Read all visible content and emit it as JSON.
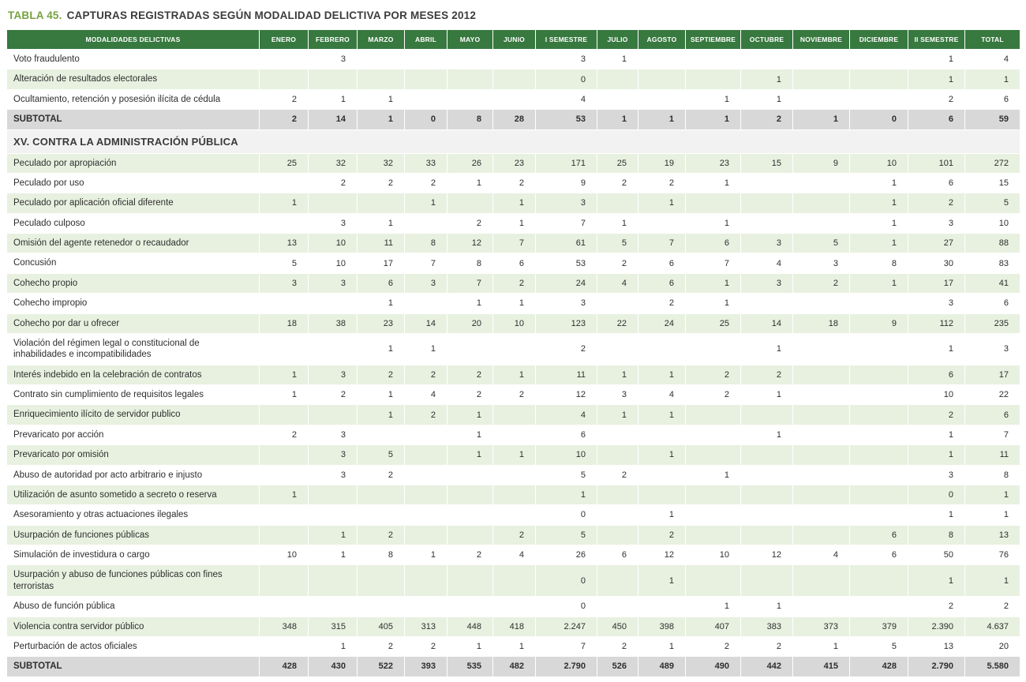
{
  "title": {
    "label": "TABLA 45.",
    "text": "CAPTURAS REGISTRADAS SEGÚN MODALIDAD DELICTIVA POR MESES 2012"
  },
  "colors": {
    "header_green": "#37793f",
    "row_alt_green": "#e8f1e0",
    "subtotal_gray": "#d8d8d8",
    "section_gray": "#f2f2f2",
    "title_green": "#76a240"
  },
  "table": {
    "columns": [
      "MODALIDADES DELICTIVAS",
      "ENERO",
      "FEBRERO",
      "MARZO",
      "ABRIL",
      "MAYO",
      "JUNIO",
      "I SEMESTRE",
      "JULIO",
      "AGOSTO",
      "SEPTIEMBRE",
      "OCTUBRE",
      "NOVIEMBRE",
      "DICIEMBRE",
      "II SEMESTRE",
      "TOTAL"
    ],
    "rows": [
      {
        "type": "data",
        "label": "Voto fraudulento",
        "values": [
          "",
          "3",
          "",
          "",
          "",
          "",
          "3",
          "1",
          "",
          "",
          "",
          "",
          "",
          "1",
          "4"
        ]
      },
      {
        "type": "data",
        "label": "Alteración de resultados electorales",
        "values": [
          "",
          "",
          "",
          "",
          "",
          "",
          "0",
          "",
          "",
          "",
          "1",
          "",
          "",
          "1",
          "1"
        ]
      },
      {
        "type": "data",
        "label": "Ocultamiento, retención y posesión ilícita de cédula",
        "values": [
          "2",
          "1",
          "1",
          "",
          "",
          "",
          "4",
          "",
          "",
          "1",
          "1",
          "",
          "",
          "2",
          "6"
        ]
      },
      {
        "type": "subtotal",
        "label": "SUBTOTAL",
        "values": [
          "2",
          "14",
          "1",
          "0",
          "8",
          "28",
          "53",
          "1",
          "1",
          "1",
          "2",
          "1",
          "0",
          "6",
          "59"
        ]
      },
      {
        "type": "section",
        "label": "XV. CONTRA LA ADMINISTRACIÓN PÚBLICA"
      },
      {
        "type": "data",
        "label": "Peculado por apropiación",
        "values": [
          "25",
          "32",
          "32",
          "33",
          "26",
          "23",
          "171",
          "25",
          "19",
          "23",
          "15",
          "9",
          "10",
          "101",
          "272"
        ]
      },
      {
        "type": "data",
        "label": "Peculado por uso",
        "values": [
          "",
          "2",
          "2",
          "2",
          "1",
          "2",
          "9",
          "2",
          "2",
          "1",
          "",
          "",
          "1",
          "6",
          "15"
        ]
      },
      {
        "type": "data",
        "label": "Peculado por aplicación oficial diferente",
        "values": [
          "1",
          "",
          "",
          "1",
          "",
          "1",
          "3",
          "",
          "1",
          "",
          "",
          "",
          "1",
          "2",
          "5"
        ]
      },
      {
        "type": "data",
        "label": "Peculado culposo",
        "values": [
          "",
          "3",
          "1",
          "",
          "2",
          "1",
          "7",
          "1",
          "",
          "1",
          "",
          "",
          "1",
          "3",
          "10"
        ]
      },
      {
        "type": "data",
        "label": "Omisión del agente retenedor o recaudador",
        "values": [
          "13",
          "10",
          "11",
          "8",
          "12",
          "7",
          "61",
          "5",
          "7",
          "6",
          "3",
          "5",
          "1",
          "27",
          "88"
        ]
      },
      {
        "type": "data",
        "label": "Concusión",
        "values": [
          "5",
          "10",
          "17",
          "7",
          "8",
          "6",
          "53",
          "2",
          "6",
          "7",
          "4",
          "3",
          "8",
          "30",
          "83"
        ]
      },
      {
        "type": "data",
        "label": "Cohecho propio",
        "values": [
          "3",
          "3",
          "6",
          "3",
          "7",
          "2",
          "24",
          "4",
          "6",
          "1",
          "3",
          "2",
          "1",
          "17",
          "41"
        ]
      },
      {
        "type": "data",
        "label": "Cohecho impropio",
        "values": [
          "",
          "",
          "1",
          "",
          "1",
          "1",
          "3",
          "",
          "2",
          "1",
          "",
          "",
          "",
          "3",
          "6"
        ]
      },
      {
        "type": "data",
        "label": "Cohecho por dar u ofrecer",
        "values": [
          "18",
          "38",
          "23",
          "14",
          "20",
          "10",
          "123",
          "22",
          "24",
          "25",
          "14",
          "18",
          "9",
          "112",
          "235"
        ]
      },
      {
        "type": "data",
        "label": "Violación del régimen legal o constitucional de inhabilidades e incompatibilidades",
        "values": [
          "",
          "",
          "1",
          "1",
          "",
          "",
          "2",
          "",
          "",
          "",
          "1",
          "",
          "",
          "1",
          "3"
        ]
      },
      {
        "type": "data",
        "label": "Interés indebido en la celebración de contratos",
        "values": [
          "1",
          "3",
          "2",
          "2",
          "2",
          "1",
          "11",
          "1",
          "1",
          "2",
          "2",
          "",
          "",
          "6",
          "17"
        ]
      },
      {
        "type": "data",
        "label": "Contrato sin cumplimiento de requisitos legales",
        "values": [
          "1",
          "2",
          "1",
          "4",
          "2",
          "2",
          "12",
          "3",
          "4",
          "2",
          "1",
          "",
          "",
          "10",
          "22"
        ]
      },
      {
        "type": "data",
        "label": "Enriquecimiento ilícito de servidor publico",
        "values": [
          "",
          "",
          "1",
          "2",
          "1",
          "",
          "4",
          "1",
          "1",
          "",
          "",
          "",
          "",
          "2",
          "6"
        ]
      },
      {
        "type": "data",
        "label": "Prevaricato por acción",
        "values": [
          "2",
          "3",
          "",
          "",
          "1",
          "",
          "6",
          "",
          "",
          "",
          "1",
          "",
          "",
          "1",
          "7"
        ]
      },
      {
        "type": "data",
        "label": "Prevaricato por omisión",
        "values": [
          "",
          "3",
          "5",
          "",
          "1",
          "1",
          "10",
          "",
          "1",
          "",
          "",
          "",
          "",
          "1",
          "11"
        ]
      },
      {
        "type": "data",
        "label": "Abuso de autoridad por acto arbitrario e injusto",
        "values": [
          "",
          "3",
          "2",
          "",
          "",
          "",
          "5",
          "2",
          "",
          "1",
          "",
          "",
          "",
          "3",
          "8"
        ]
      },
      {
        "type": "data",
        "label": "Utilización de asunto sometido a secreto o reserva",
        "values": [
          "1",
          "",
          "",
          "",
          "",
          "",
          "1",
          "",
          "",
          "",
          "",
          "",
          "",
          "0",
          "1"
        ]
      },
      {
        "type": "data",
        "label": "Asesoramiento y otras actuaciones ilegales",
        "values": [
          "",
          "",
          "",
          "",
          "",
          "",
          "0",
          "",
          "1",
          "",
          "",
          "",
          "",
          "1",
          "1"
        ]
      },
      {
        "type": "data",
        "label": "Usurpación de funciones públicas",
        "values": [
          "",
          "1",
          "2",
          "",
          "",
          "2",
          "5",
          "",
          "2",
          "",
          "",
          "",
          "6",
          "8",
          "13"
        ]
      },
      {
        "type": "data",
        "label": "Simulación de investidura o cargo",
        "values": [
          "10",
          "1",
          "8",
          "1",
          "2",
          "4",
          "26",
          "6",
          "12",
          "10",
          "12",
          "4",
          "6",
          "50",
          "76"
        ]
      },
      {
        "type": "data",
        "label": "Usurpación y abuso de funciones públicas con fines terroristas",
        "values": [
          "",
          "",
          "",
          "",
          "",
          "",
          "0",
          "",
          "1",
          "",
          "",
          "",
          "",
          "1",
          "1"
        ]
      },
      {
        "type": "data",
        "label": "Abuso de función pública",
        "values": [
          "",
          "",
          "",
          "",
          "",
          "",
          "0",
          "",
          "",
          "1",
          "1",
          "",
          "",
          "2",
          "2"
        ]
      },
      {
        "type": "data",
        "label": "Violencia contra servidor público",
        "values": [
          "348",
          "315",
          "405",
          "313",
          "448",
          "418",
          "2.247",
          "450",
          "398",
          "407",
          "383",
          "373",
          "379",
          "2.390",
          "4.637"
        ]
      },
      {
        "type": "data",
        "label": "Perturbación de actos oficiales",
        "values": [
          "",
          "1",
          "2",
          "2",
          "1",
          "1",
          "7",
          "2",
          "1",
          "2",
          "2",
          "1",
          "5",
          "13",
          "20"
        ]
      },
      {
        "type": "subtotal",
        "label": "SUBTOTAL",
        "values": [
          "428",
          "430",
          "522",
          "393",
          "535",
          "482",
          "2.790",
          "526",
          "489",
          "490",
          "442",
          "415",
          "428",
          "2.790",
          "5.580"
        ]
      }
    ]
  }
}
